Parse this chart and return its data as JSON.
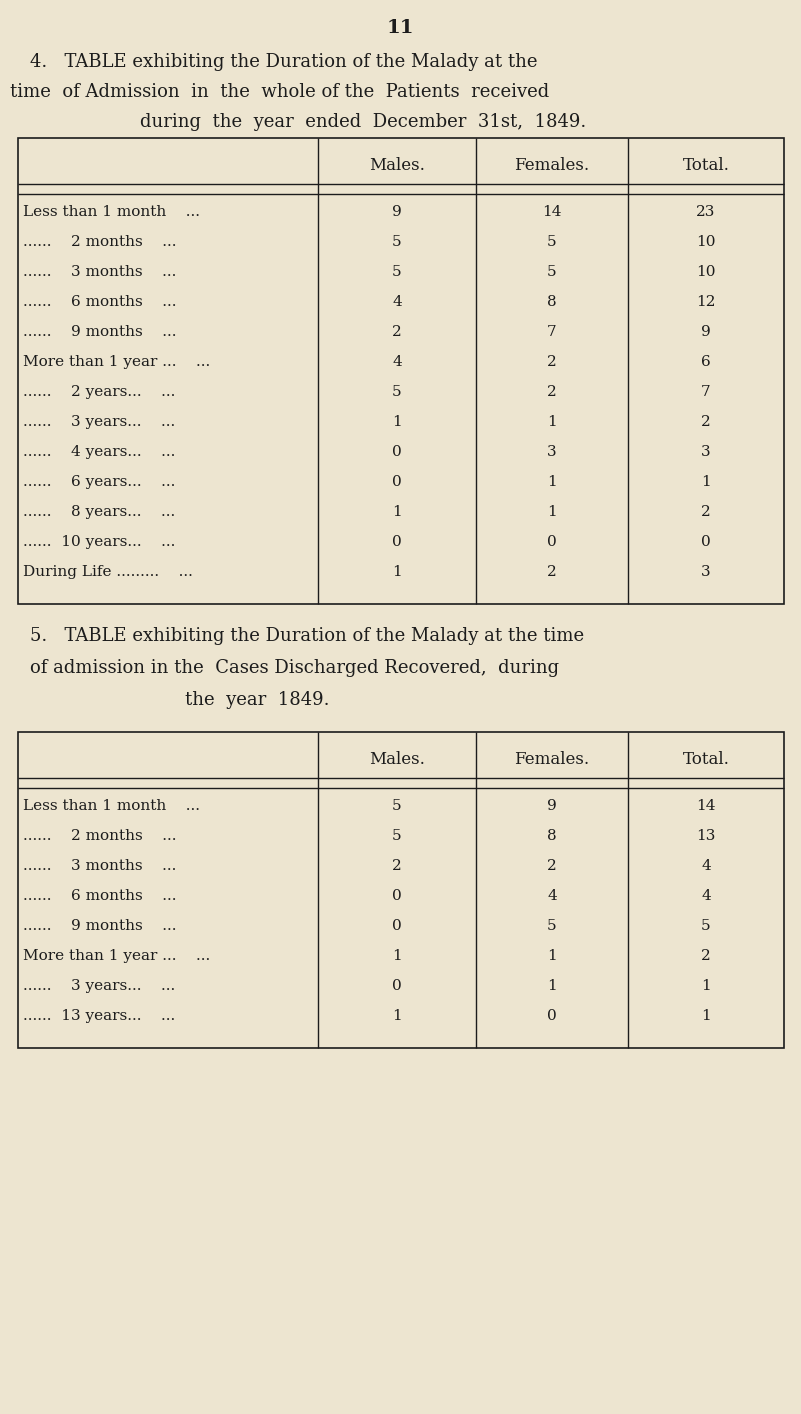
{
  "bg_color": "#ede5d0",
  "text_color": "#1c1c1c",
  "page_number": "11",
  "table1": {
    "title_line1": "4.   TABLE exhibiting the Duration of the Malady at the",
    "title_line2": "time  of Admission  in  the  whole of the  Patients  received",
    "title_line3": "during  the  year  ended  December  31st,  1849.",
    "col_headers": [
      "Males.",
      "Females.",
      "Total."
    ],
    "rows": [
      [
        "Less than 1 month    ...",
        "9",
        "14",
        "23"
      ],
      [
        "......    2 months    ...",
        "5",
        "5",
        "10"
      ],
      [
        "......    3 months    ...",
        "5",
        "5",
        "10"
      ],
      [
        "......    6 months    ...",
        "4",
        "8",
        "12"
      ],
      [
        "......    9 months    ...",
        "2",
        "7",
        "9"
      ],
      [
        "More than 1 year ...    ...",
        "4",
        "2",
        "6"
      ],
      [
        "......    2 years...    ...",
        "5",
        "2",
        "7"
      ],
      [
        "......    3 years...    ...",
        "1",
        "1",
        "2"
      ],
      [
        "......    4 years...    ...",
        "0",
        "3",
        "3"
      ],
      [
        "......    6 years...    ...",
        "0",
        "1",
        "1"
      ],
      [
        "......    8 years...    ...",
        "1",
        "1",
        "2"
      ],
      [
        "......  10 years...    ...",
        "0",
        "0",
        "0"
      ],
      [
        "During Life .........    ...",
        "1",
        "2",
        "3"
      ]
    ]
  },
  "table2": {
    "title_line1": "5.   TABLE exhibiting the Duration of the Malady at the time",
    "title_line2": "of admission in the  Cases Discharged Recovered,  during",
    "title_line3": "the  year  1849.",
    "col_headers": [
      "Males.",
      "Females.",
      "Total."
    ],
    "rows": [
      [
        "Less than 1 month    ...",
        "5",
        "9",
        "14"
      ],
      [
        "......    2 months    ...",
        "5",
        "8",
        "13"
      ],
      [
        "......    3 months    ...",
        "2",
        "2",
        "4"
      ],
      [
        "......    6 months    ...",
        "0",
        "4",
        "4"
      ],
      [
        "......    9 months    ...",
        "0",
        "5",
        "5"
      ],
      [
        "More than 1 year ...    ...",
        "1",
        "1",
        "2"
      ],
      [
        "......    3 years...    ...",
        "0",
        "1",
        "1"
      ],
      [
        "......  13 years...    ...",
        "1",
        "0",
        "1"
      ]
    ]
  }
}
